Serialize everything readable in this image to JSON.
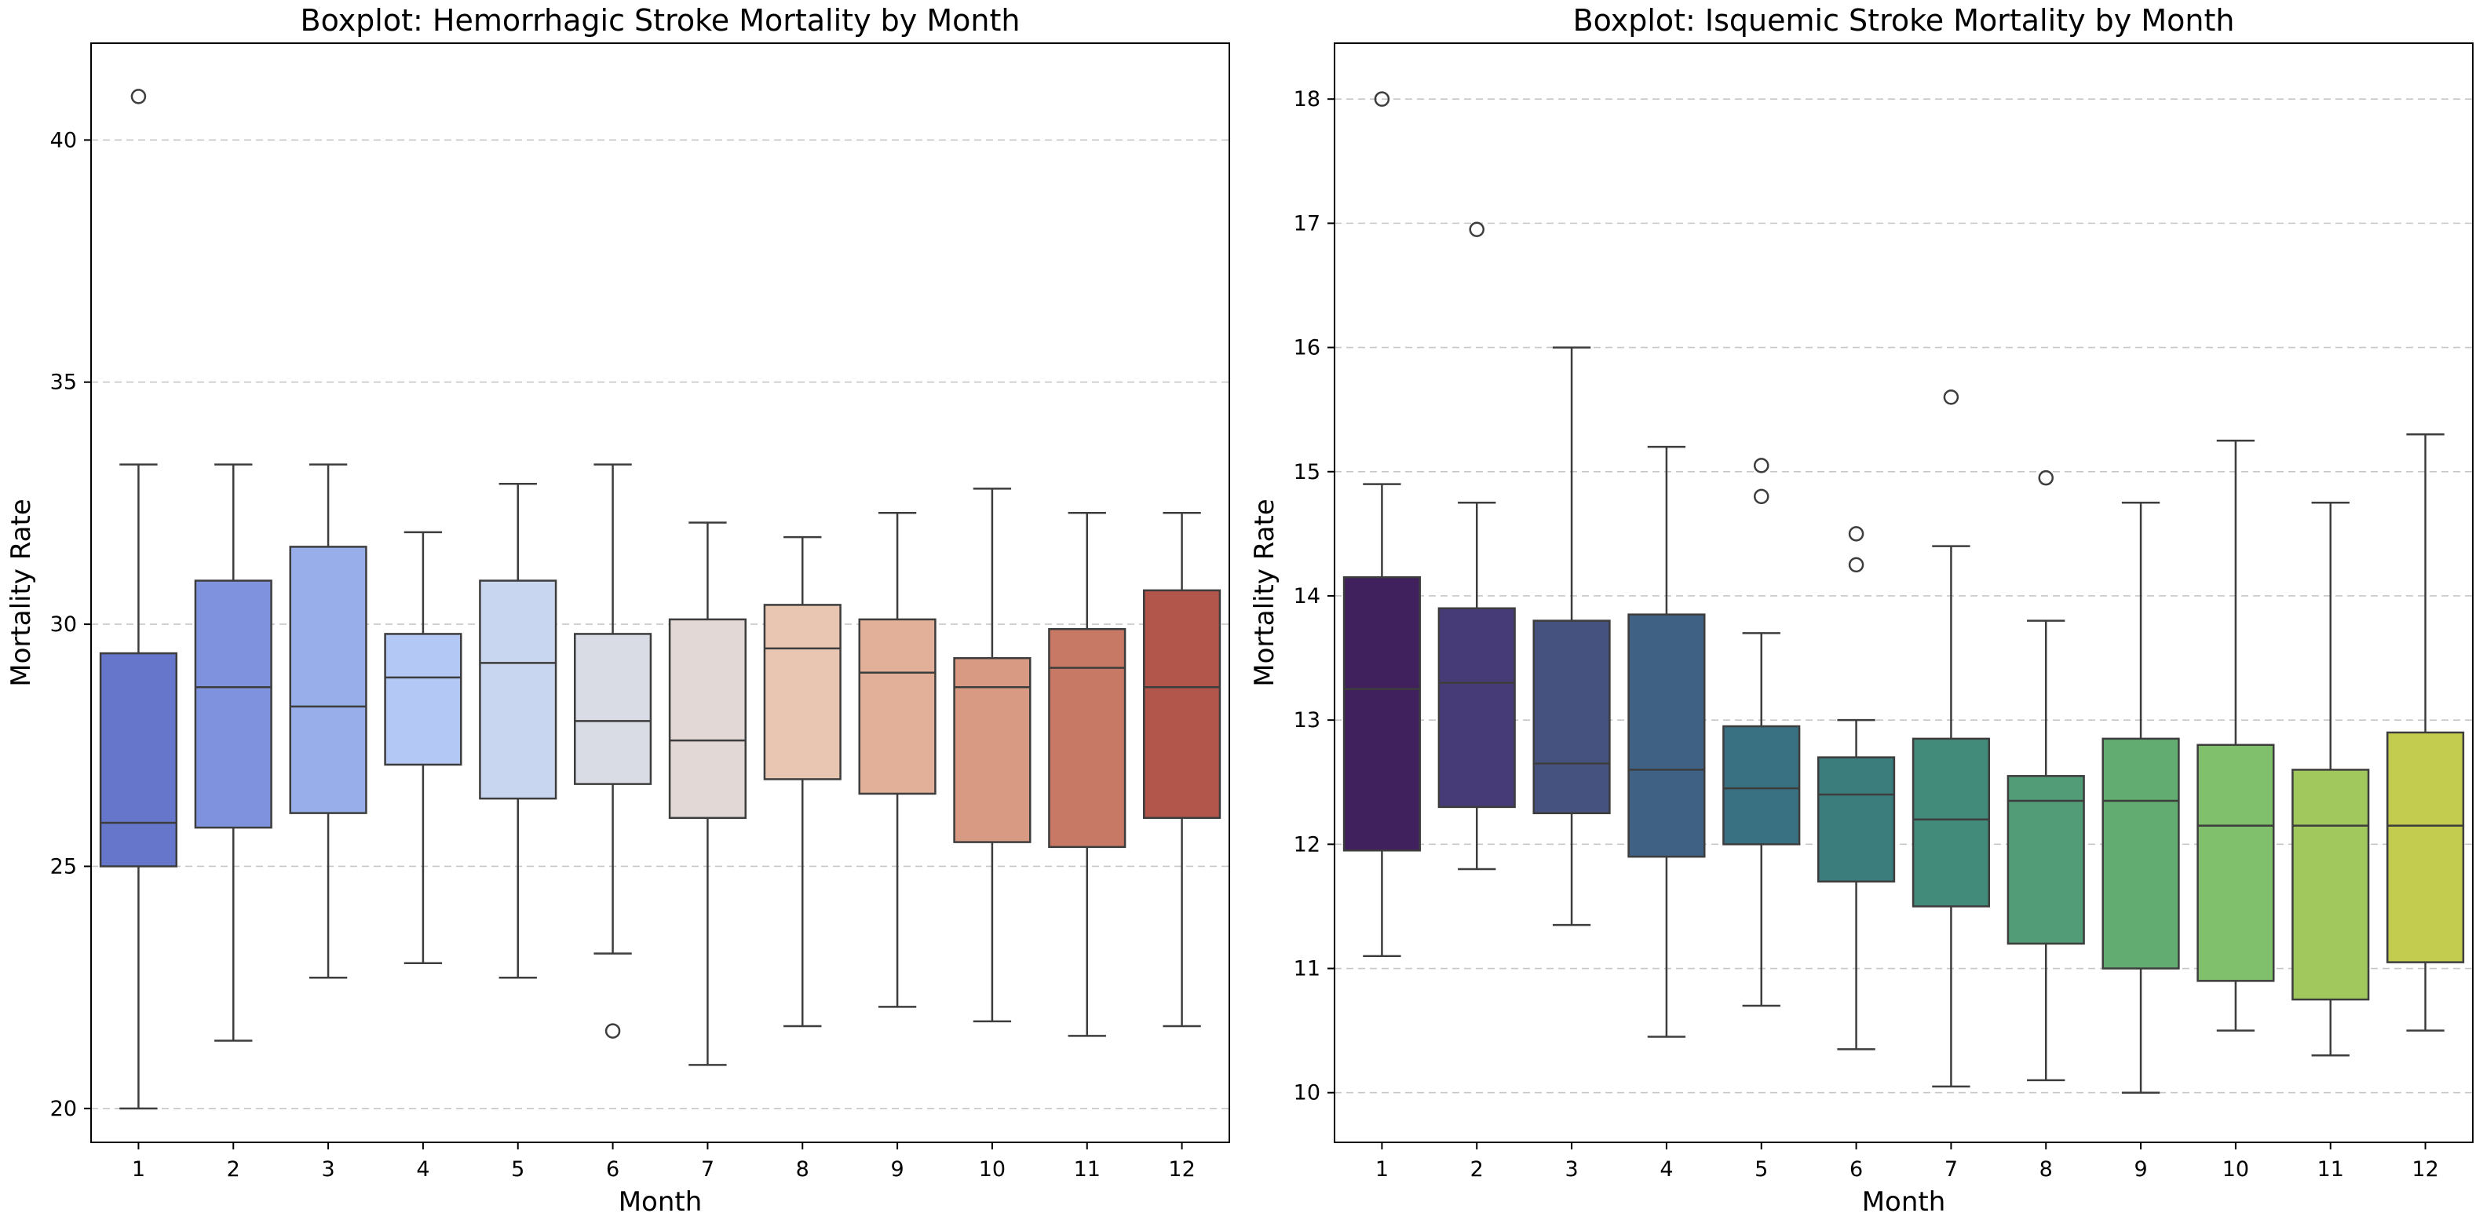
{
  "chart_data": [
    {
      "type": "boxplot",
      "title": "Boxplot: Hemorrhagic Stroke Mortality by Month",
      "xlabel": "Month",
      "ylabel": "Mortality Rate",
      "ylim": [
        19.3,
        42.0
      ],
      "yticks": [
        20,
        25,
        30,
        35,
        40
      ],
      "grid": "y-dashed",
      "categories": [
        "1",
        "2",
        "3",
        "4",
        "5",
        "6",
        "7",
        "8",
        "9",
        "10",
        "11",
        "12"
      ],
      "colors": [
        "#6676cb",
        "#7f92dd",
        "#98aeea",
        "#b3c8f5",
        "#c8d6ef",
        "#d9dce5",
        "#e2d8d5",
        "#e8c6b2",
        "#e2af98",
        "#d89a82",
        "#c87966",
        "#b2554a"
      ],
      "boxes": [
        {
          "min": 20.0,
          "q1": 25.0,
          "median": 25.9,
          "q3": 29.4,
          "max": 33.3,
          "fliers": [
            40.9
          ]
        },
        {
          "min": 21.4,
          "q1": 25.8,
          "median": 28.7,
          "q3": 30.9,
          "max": 33.3,
          "fliers": []
        },
        {
          "min": 22.7,
          "q1": 26.1,
          "median": 28.3,
          "q3": 31.6,
          "max": 33.3,
          "fliers": []
        },
        {
          "min": 23.0,
          "q1": 27.1,
          "median": 28.9,
          "q3": 29.8,
          "max": 31.9,
          "fliers": []
        },
        {
          "min": 22.7,
          "q1": 26.4,
          "median": 29.2,
          "q3": 30.9,
          "max": 32.9,
          "fliers": []
        },
        {
          "min": 23.2,
          "q1": 26.7,
          "median": 28.0,
          "q3": 29.8,
          "max": 33.3,
          "fliers": [
            21.6
          ]
        },
        {
          "min": 20.9,
          "q1": 26.0,
          "median": 27.6,
          "q3": 30.1,
          "max": 32.1,
          "fliers": []
        },
        {
          "min": 21.7,
          "q1": 26.8,
          "median": 29.5,
          "q3": 30.4,
          "max": 31.8,
          "fliers": []
        },
        {
          "min": 22.1,
          "q1": 26.5,
          "median": 29.0,
          "q3": 30.1,
          "max": 32.3,
          "fliers": []
        },
        {
          "min": 21.8,
          "q1": 25.5,
          "median": 28.7,
          "q3": 29.3,
          "max": 32.8,
          "fliers": []
        },
        {
          "min": 21.5,
          "q1": 25.4,
          "median": 29.1,
          "q3": 29.9,
          "max": 32.3,
          "fliers": []
        },
        {
          "min": 21.7,
          "q1": 26.0,
          "median": 28.7,
          "q3": 30.7,
          "max": 32.3,
          "fliers": []
        }
      ]
    },
    {
      "type": "boxplot",
      "title": "Boxplot: Isquemic Stroke Mortality by Month",
      "xlabel": "Month",
      "ylabel": "Mortality Rate",
      "ylim": [
        9.6,
        18.45
      ],
      "yticks": [
        10,
        11,
        12,
        13,
        14,
        15,
        16,
        17,
        18
      ],
      "grid": "y-dashed",
      "categories": [
        "1",
        "2",
        "3",
        "4",
        "5",
        "6",
        "7",
        "8",
        "9",
        "10",
        "11",
        "12"
      ],
      "colors": [
        "#40215e",
        "#463a77",
        "#45517e",
        "#3f6184",
        "#3a7182",
        "#3b7c7d",
        "#428a7a",
        "#529d78",
        "#62ac72",
        "#80bf6b",
        "#a0c85d",
        "#c3cc4e"
      ],
      "boxes": [
        {
          "min": 11.1,
          "q1": 11.95,
          "median": 13.25,
          "q3": 14.15,
          "max": 14.9,
          "fliers": [
            18.0
          ]
        },
        {
          "min": 11.8,
          "q1": 12.3,
          "median": 13.3,
          "q3": 13.9,
          "max": 14.75,
          "fliers": [
            16.95
          ]
        },
        {
          "min": 11.35,
          "q1": 12.25,
          "median": 12.65,
          "q3": 13.8,
          "max": 16.0,
          "fliers": []
        },
        {
          "min": 10.45,
          "q1": 11.9,
          "median": 12.6,
          "q3": 13.85,
          "max": 15.2,
          "fliers": []
        },
        {
          "min": 10.7,
          "q1": 12.0,
          "median": 12.45,
          "q3": 12.95,
          "max": 13.7,
          "fliers": [
            15.05,
            14.8
          ]
        },
        {
          "min": 10.35,
          "q1": 11.7,
          "median": 12.4,
          "q3": 12.7,
          "max": 13.0,
          "fliers": [
            14.5,
            14.25
          ]
        },
        {
          "min": 10.05,
          "q1": 11.5,
          "median": 12.2,
          "q3": 12.85,
          "max": 14.4,
          "fliers": [
            15.6
          ]
        },
        {
          "min": 10.1,
          "q1": 11.2,
          "median": 12.35,
          "q3": 12.55,
          "max": 13.8,
          "fliers": [
            14.95
          ]
        },
        {
          "min": 10.0,
          "q1": 11.0,
          "median": 12.35,
          "q3": 12.85,
          "max": 14.75,
          "fliers": []
        },
        {
          "min": 10.5,
          "q1": 10.9,
          "median": 12.15,
          "q3": 12.8,
          "max": 15.25,
          "fliers": []
        },
        {
          "min": 10.3,
          "q1": 10.75,
          "median": 12.15,
          "q3": 12.6,
          "max": 14.75,
          "fliers": []
        },
        {
          "min": 10.5,
          "q1": 11.05,
          "median": 12.15,
          "q3": 12.9,
          "max": 15.3,
          "fliers": []
        }
      ]
    }
  ]
}
